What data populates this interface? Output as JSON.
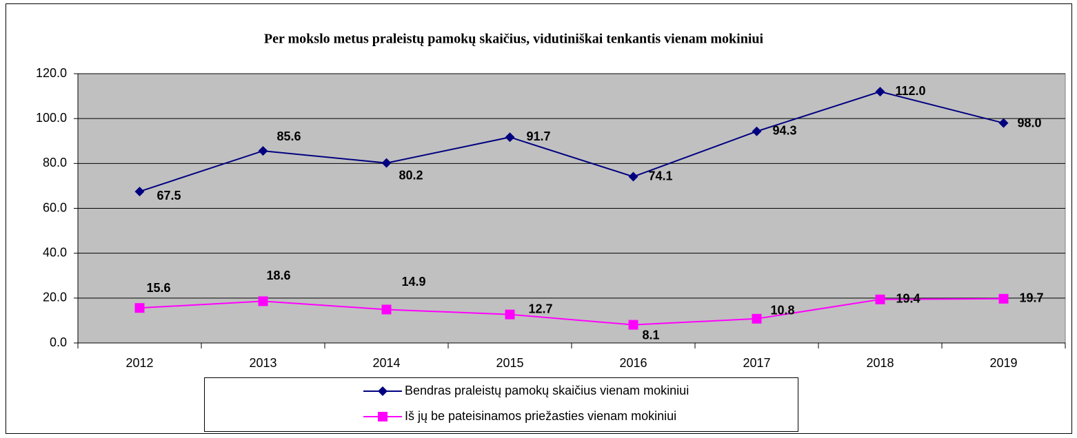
{
  "chart_data": {
    "type": "line",
    "title": "Per mokslo metus praleistų pamokų skaičius, vidutiniškai tenkantis vienam mokiniui",
    "categories": [
      "2012",
      "2013",
      "2014",
      "2015",
      "2016",
      "2017",
      "2018",
      "2019"
    ],
    "series": [
      {
        "name": "Bendras praleistų pamokų skaičius vienam mokiniui",
        "color": "#000080",
        "marker": "diamond",
        "values": [
          67.5,
          85.6,
          80.2,
          91.7,
          74.1,
          94.3,
          112,
          98
        ],
        "value_labels": [
          "67.5",
          "85.6",
          "80.2",
          "91.7",
          "74.1",
          "94.3",
          "112.0",
          "98.0"
        ]
      },
      {
        "name": "Iš jų be pateisinamos priežasties vienam mokiniui",
        "color": "#ff00ff",
        "marker": "square",
        "values": [
          15.6,
          18.6,
          14.9,
          12.7,
          8.1,
          10.8,
          19.4,
          19.7
        ],
        "value_labels": [
          "15.6",
          "18.6",
          "14.9",
          "12.7",
          "8.1",
          "10.8",
          "19.4",
          "19.7"
        ]
      }
    ],
    "ylim": [
      0,
      120
    ],
    "yticks": [
      {
        "value": 0,
        "label": "0.0"
      },
      {
        "value": 20,
        "label": "20.0"
      },
      {
        "value": 40,
        "label": "40.0"
      },
      {
        "value": 60,
        "label": "60.0"
      },
      {
        "value": 80,
        "label": "80.0"
      },
      {
        "value": 100,
        "label": "100.0"
      },
      {
        "value": 120,
        "label": "120.0"
      }
    ],
    "grid": true,
    "legend": "bottom",
    "plot_background": "#c0c0c0"
  }
}
